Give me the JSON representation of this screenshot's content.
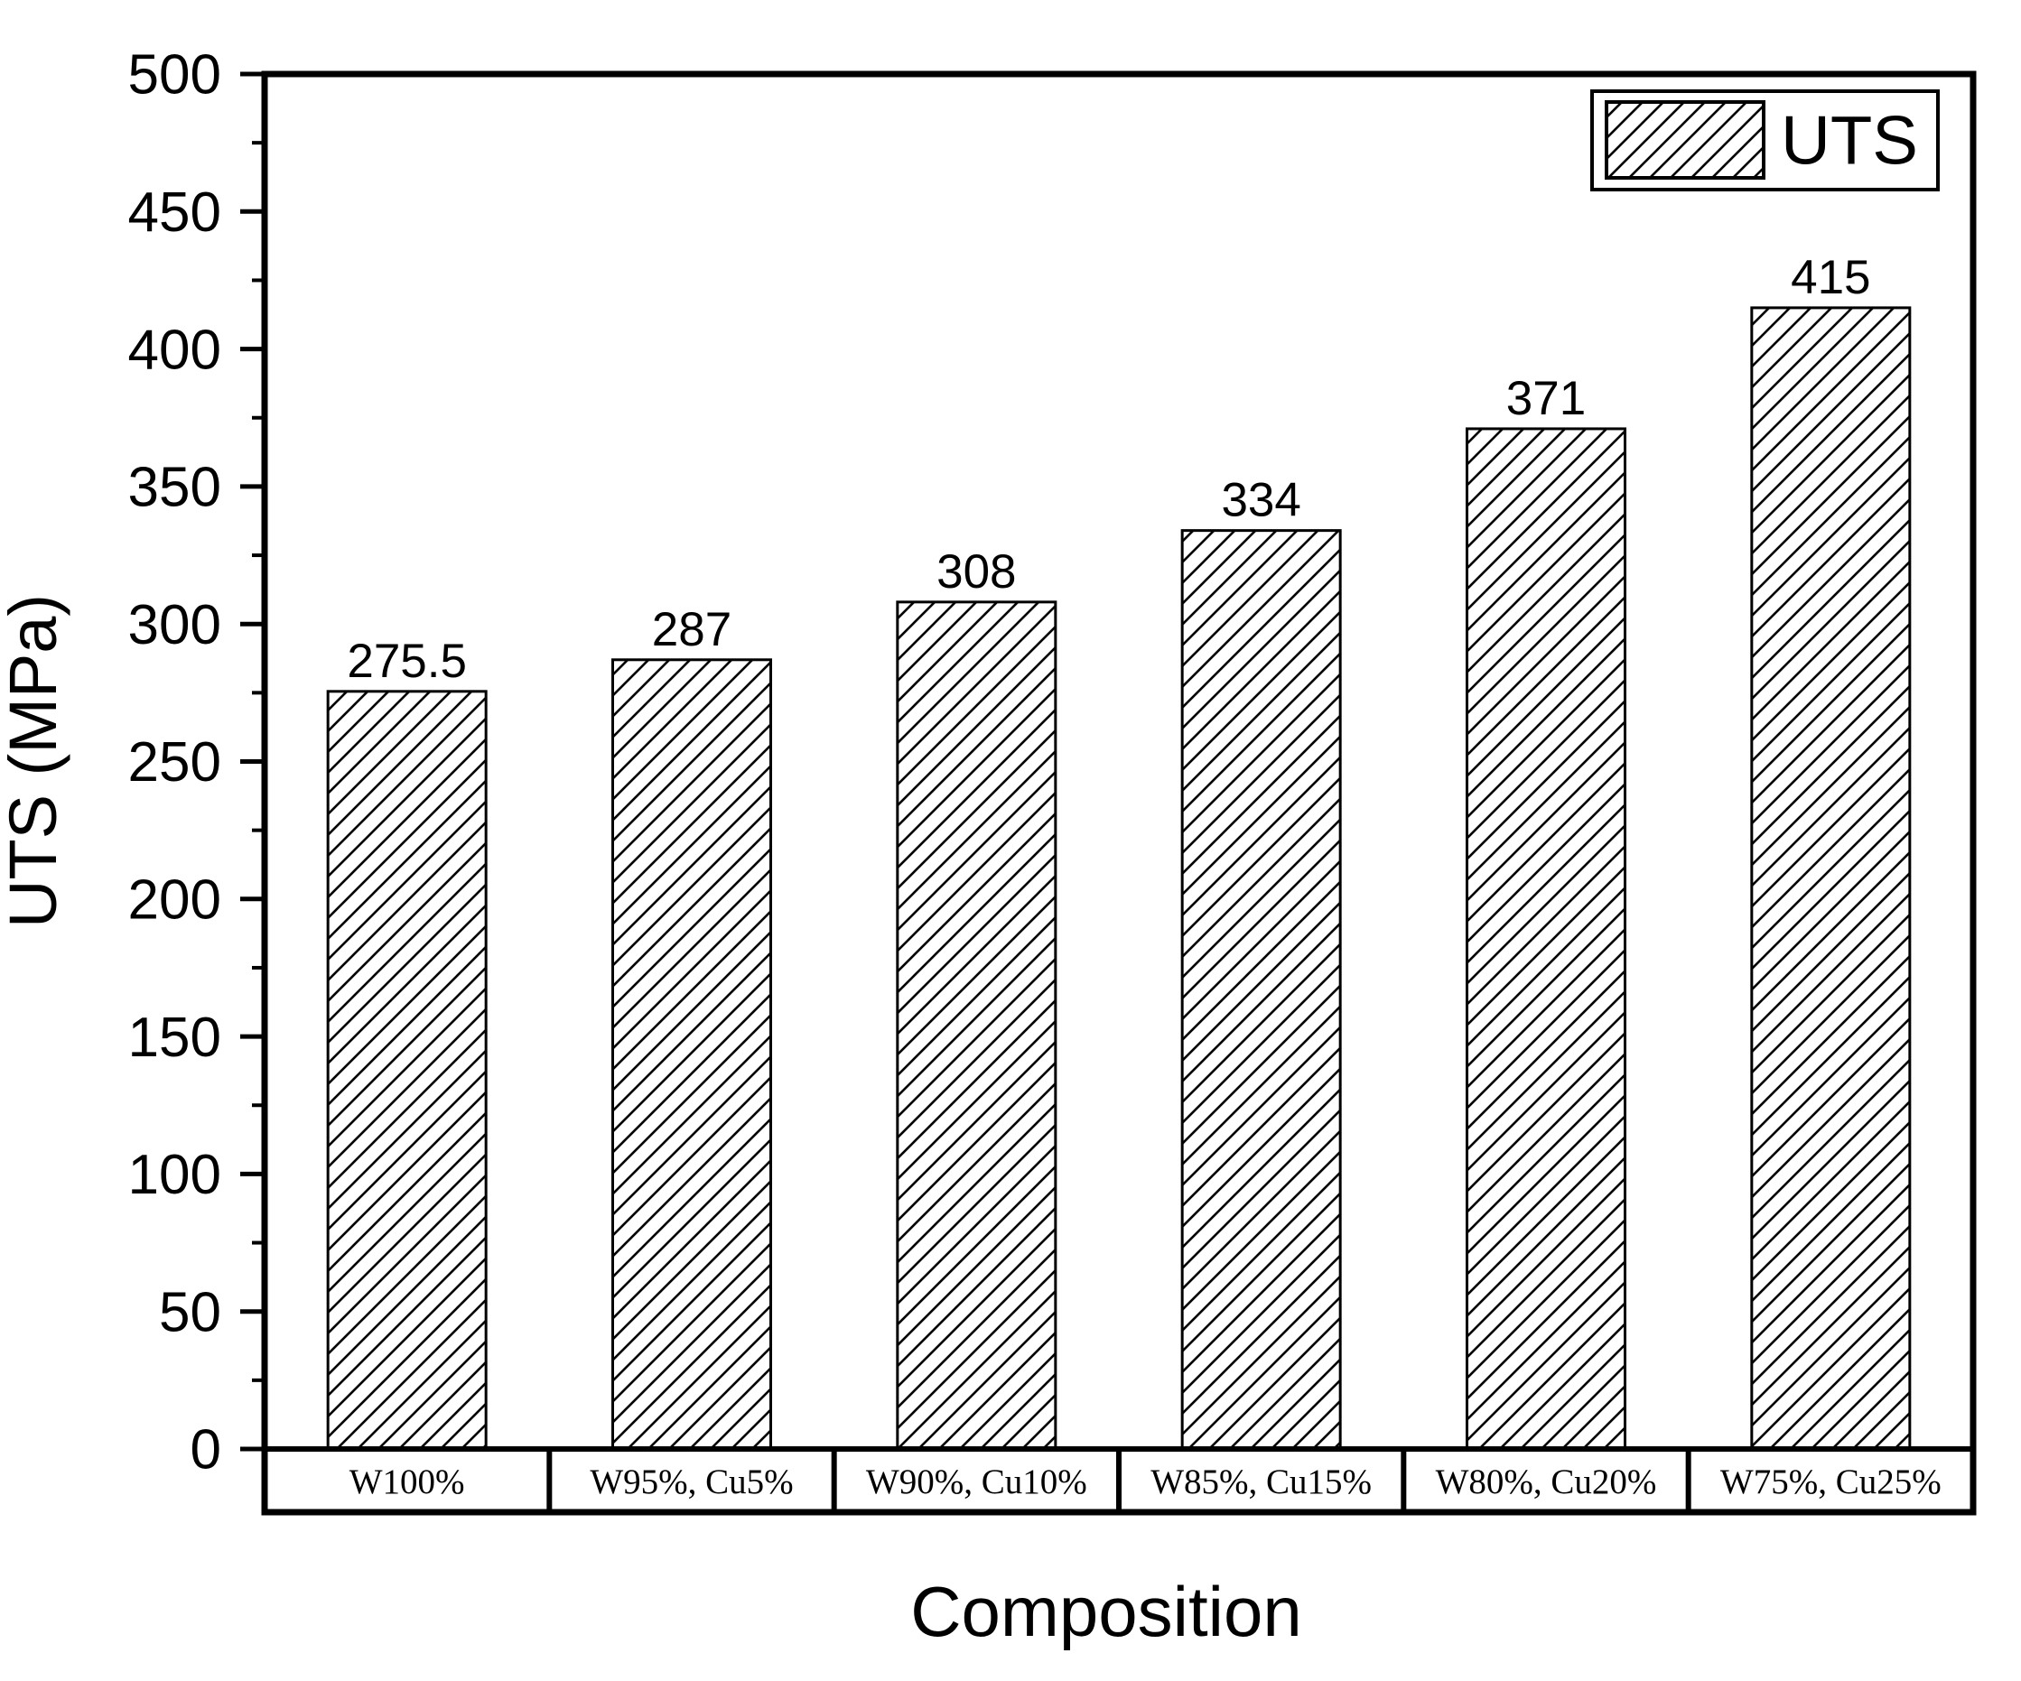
{
  "figure": {
    "background": "#ffffff",
    "foreground": "#000000",
    "y_axis": {
      "title": "UTS (MPa)",
      "min": 0,
      "max": 500,
      "major_tick_step": 50,
      "minor_tick_step": 25,
      "tick_labels": [
        "0",
        "50",
        "100",
        "150",
        "200",
        "250",
        "300",
        "350",
        "400",
        "450",
        "500"
      ]
    },
    "x_axis": {
      "title": "Composition"
    },
    "legend": {
      "label": "UTS",
      "swatch": "diagonal-hatch-box",
      "position": "top-right"
    }
  },
  "chart_data": {
    "type": "bar",
    "title": "",
    "xlabel": "Composition",
    "ylabel": "UTS (MPa)",
    "categories": [
      "W100%",
      "W95%, Cu5%",
      "W90%, Cu10%",
      "W85%, Cu15%",
      "W80%, Cu20%",
      "W75%, Cu25%"
    ],
    "series": [
      {
        "name": "UTS",
        "values": [
          275.5,
          287,
          308,
          334,
          371,
          415
        ]
      }
    ],
    "data_labels": [
      "275.5",
      "287",
      "308",
      "334",
      "371",
      "415"
    ],
    "ylim": [
      0,
      500
    ],
    "ytick_interval": 50,
    "minor_tick_interval": 25,
    "grid": false,
    "legend_position": "top-right",
    "bar_style": {
      "fill": "#ffffff",
      "hatch": "diagonal-forward",
      "stroke": "#000000"
    }
  }
}
